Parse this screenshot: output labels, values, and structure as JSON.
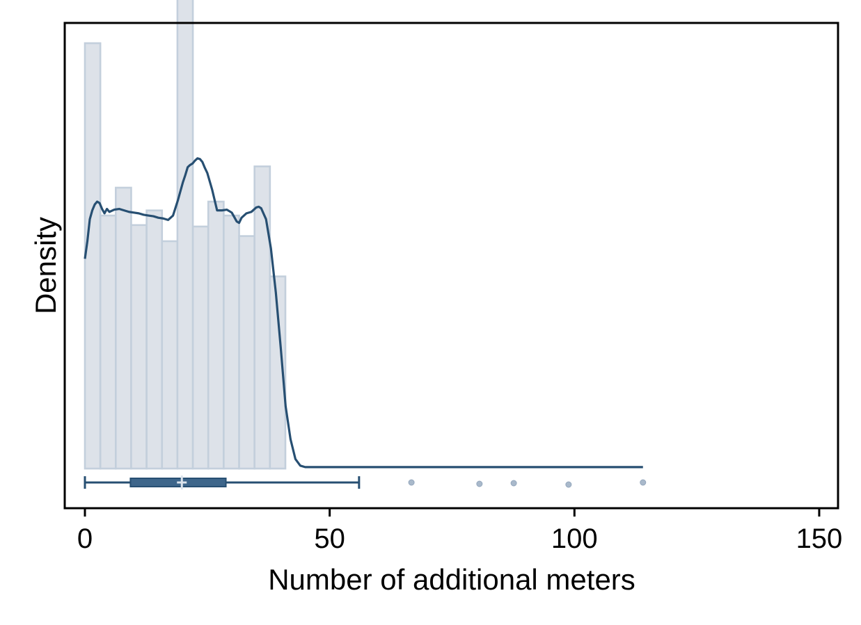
{
  "chart_data": {
    "type": "bar",
    "xlabel": "Number of additional meters",
    "ylabel": "Density",
    "xlim": [
      -4,
      153
    ],
    "x_ticks": [
      0,
      50,
      100,
      150
    ],
    "grid": false,
    "histogram": {
      "bin_width": 3.15,
      "bin_starts": [
        0,
        3.15,
        6.3,
        9.45,
        12.6,
        15.75,
        18.9,
        22.05,
        25.2,
        28.35,
        31.5,
        34.65,
        37.8
      ],
      "densities": [
        0.058,
        0.0345,
        0.0383,
        0.0332,
        0.0352,
        0.031,
        0.0666,
        0.033,
        0.0364,
        0.0345,
        0.0317,
        0.0412,
        0.0262
      ]
    },
    "density_curve": {
      "x": [
        0,
        0.5,
        1,
        1.5,
        2,
        2.5,
        3,
        3.5,
        4,
        4.5,
        5,
        6,
        7,
        8,
        9,
        10,
        11,
        12,
        13,
        14,
        15,
        16,
        17,
        18,
        19,
        20,
        20.5,
        21,
        21.5,
        22,
        22.5,
        23,
        23.5,
        24,
        24.5,
        25,
        26,
        27,
        28,
        29,
        30,
        31,
        31.5,
        32,
        33,
        34,
        35,
        35.5,
        36,
        37,
        38,
        39,
        40,
        40.5,
        41,
        42,
        43,
        44,
        45,
        46,
        50,
        60,
        70,
        80,
        90,
        100,
        110,
        114
      ],
      "y": [
        0.0286,
        0.031,
        0.034,
        0.0352,
        0.036,
        0.0364,
        0.0362,
        0.0354,
        0.0348,
        0.0354,
        0.035,
        0.0353,
        0.0354,
        0.0352,
        0.035,
        0.0349,
        0.0348,
        0.0346,
        0.0345,
        0.0344,
        0.0342,
        0.0341,
        0.0339,
        0.0345,
        0.0366,
        0.039,
        0.04,
        0.0411,
        0.0414,
        0.0416,
        0.042,
        0.0423,
        0.0422,
        0.0418,
        0.041,
        0.0403,
        0.038,
        0.0352,
        0.0352,
        0.0353,
        0.0349,
        0.0337,
        0.0335,
        0.0342,
        0.0348,
        0.035,
        0.0356,
        0.0357,
        0.0355,
        0.034,
        0.03,
        0.024,
        0.0165,
        0.0125,
        0.0085,
        0.004,
        0.0013,
        0.0004,
        0.0002,
        0.0002,
        0.0002,
        0.0002,
        0.0002,
        0.0002,
        0.0002,
        0.0002,
        0.0002,
        0.0002
      ]
    },
    "boxplot": {
      "whisker_low": 0,
      "q1": 9.3,
      "median": 19.8,
      "q3": 28.8,
      "whisker_high": 56,
      "mean": 19.8,
      "outliers": [
        66.7,
        80.6,
        87.6,
        98.8,
        114
      ]
    },
    "colors": {
      "bar_fill": "#dde2e9",
      "bar_edge": "#c3cfdc",
      "line": "#274f72",
      "box_fill": "#3e668b",
      "outlier": "#a9b9cb",
      "median_mark": "#dbe3ec",
      "axis": "#000000"
    }
  }
}
